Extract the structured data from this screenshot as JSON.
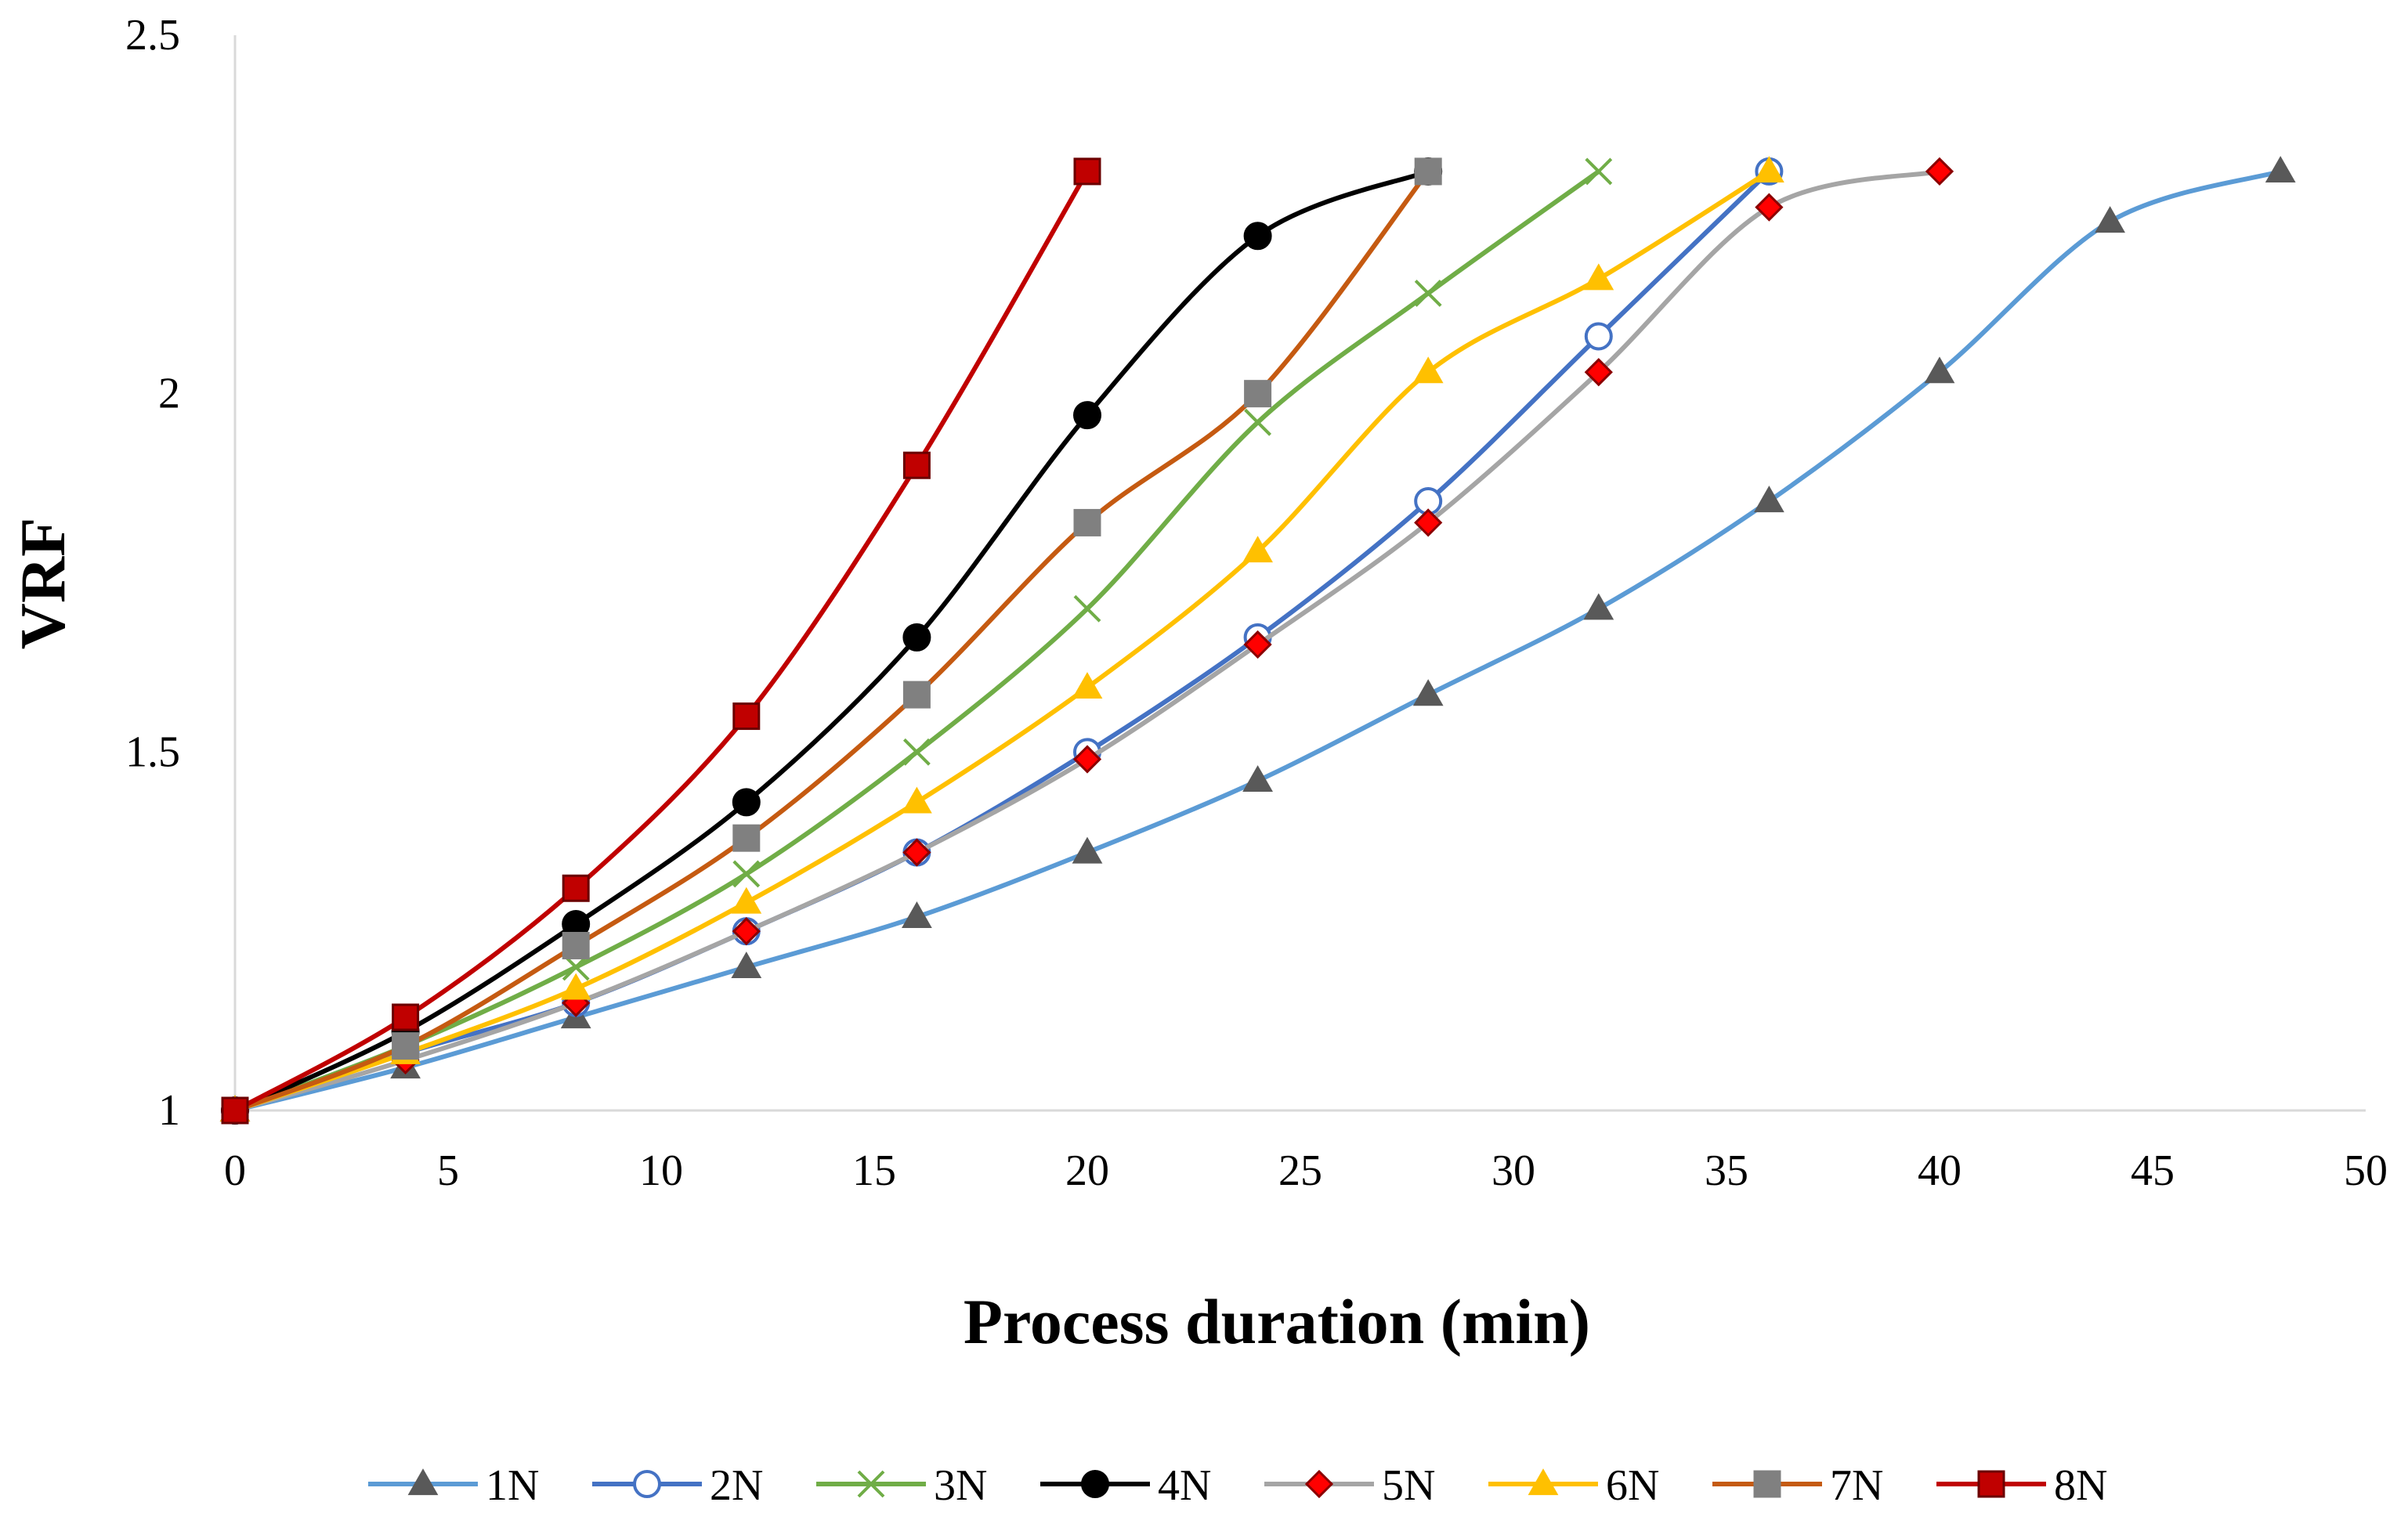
{
  "chart_data": {
    "type": "line",
    "title": "",
    "xlabel": "Process duration (min)",
    "ylabel": "VRF",
    "xlim": [
      0,
      50
    ],
    "ylim": [
      1,
      2.5
    ],
    "xticks": [
      0,
      5,
      10,
      15,
      20,
      25,
      30,
      35,
      40,
      45,
      50
    ],
    "yticks": [
      1,
      1.5,
      2,
      2.5
    ],
    "ytick_labels": [
      "1",
      "1.5",
      "2",
      "2.5"
    ],
    "grid": false,
    "legend_position": "bottom",
    "series": [
      {
        "name": "1N",
        "color": "#5B9BD5",
        "marker": "triangle",
        "marker_fill": "#595959",
        "marker_stroke": "#595959",
        "x": [
          0,
          4,
          8,
          12,
          16,
          20,
          24,
          28,
          32,
          36,
          40,
          44,
          48
        ],
        "y": [
          1.0,
          1.06,
          1.13,
          1.2,
          1.27,
          1.36,
          1.46,
          1.58,
          1.7,
          1.85,
          2.03,
          2.24,
          2.31
        ]
      },
      {
        "name": "2N",
        "color": "#4472C4",
        "marker": "circle",
        "marker_fill": "#ffffff",
        "marker_stroke": "#4472C4",
        "x": [
          0,
          4,
          8,
          12,
          16,
          20,
          24,
          28,
          32,
          36
        ],
        "y": [
          1.0,
          1.08,
          1.15,
          1.25,
          1.36,
          1.5,
          1.66,
          1.85,
          2.08,
          2.31
        ]
      },
      {
        "name": "3N",
        "color": "#70AD47",
        "marker": "x",
        "marker_fill": "none",
        "marker_stroke": "#70AD47",
        "x": [
          0,
          4,
          8,
          12,
          16,
          20,
          24,
          28,
          32
        ],
        "y": [
          1.0,
          1.09,
          1.2,
          1.33,
          1.5,
          1.7,
          1.96,
          2.14,
          2.31
        ]
      },
      {
        "name": "4N",
        "color": "#000000",
        "marker": "circle",
        "marker_fill": "#000000",
        "marker_stroke": "#000000",
        "x": [
          0,
          4,
          8,
          12,
          16,
          20,
          24,
          28
        ],
        "y": [
          1.0,
          1.11,
          1.26,
          1.43,
          1.66,
          1.97,
          2.22,
          2.31
        ]
      },
      {
        "name": "5N",
        "color": "#A5A5A5",
        "marker": "diamond",
        "marker_fill": "#FF0000",
        "marker_stroke": "#8B0000",
        "x": [
          0,
          4,
          8,
          12,
          16,
          20,
          24,
          28,
          32,
          36,
          40
        ],
        "y": [
          1.0,
          1.07,
          1.15,
          1.25,
          1.36,
          1.49,
          1.65,
          1.82,
          2.03,
          2.26,
          2.31
        ]
      },
      {
        "name": "6N",
        "color": "#FFC000",
        "marker": "triangle",
        "marker_fill": "#FFC000",
        "marker_stroke": "#FFC000",
        "x": [
          0,
          4,
          8,
          12,
          16,
          20,
          24,
          28,
          32,
          36
        ],
        "y": [
          1.0,
          1.08,
          1.17,
          1.29,
          1.43,
          1.59,
          1.78,
          2.03,
          2.16,
          2.31
        ]
      },
      {
        "name": "7N",
        "color": "#C55A11",
        "marker": "square",
        "marker_fill": "#808080",
        "marker_stroke": "#808080",
        "x": [
          0,
          4,
          8,
          12,
          16,
          20,
          24,
          28
        ],
        "y": [
          1.0,
          1.09,
          1.23,
          1.38,
          1.58,
          1.82,
          2.0,
          2.31
        ]
      },
      {
        "name": "8N",
        "color": "#C00000",
        "marker": "square",
        "marker_fill": "#C00000",
        "marker_stroke": "#6B0000",
        "x": [
          0,
          4,
          8,
          12,
          16,
          20
        ],
        "y": [
          1.0,
          1.13,
          1.31,
          1.55,
          1.9,
          2.31
        ]
      }
    ]
  }
}
